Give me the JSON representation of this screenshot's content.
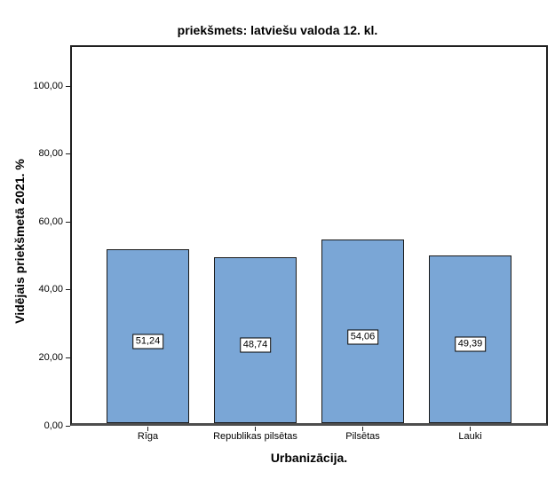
{
  "chart_data": {
    "type": "bar",
    "title": "priekšmets: latviešu valoda 12. kl.",
    "xlabel": "Urbanizācija.",
    "ylabel": "Vidējais priekšmetā 2021. %",
    "categories": [
      "Rīga",
      "Republikas pilsētas",
      "Pilsētas",
      "Lauki"
    ],
    "values": [
      51.24,
      48.74,
      54.06,
      49.39
    ],
    "value_labels": [
      "51,24",
      "48,74",
      "54,06",
      "49,39"
    ],
    "yticks": {
      "values": [
        0,
        20,
        40,
        60,
        80,
        100
      ],
      "labels": [
        "0,00",
        "20,00",
        "40,00",
        "60,00",
        "80,00",
        "100,00"
      ]
    },
    "ylim": [
      0,
      112
    ],
    "grid": false,
    "legend": null,
    "bar_fill_color": "#7AA6D6",
    "bar_border_color": "#1a1a1a",
    "axis_line_color": "#4d4d4d",
    "frame_color": "#1f1f1f",
    "value_label_bg": "#ffffff"
  }
}
